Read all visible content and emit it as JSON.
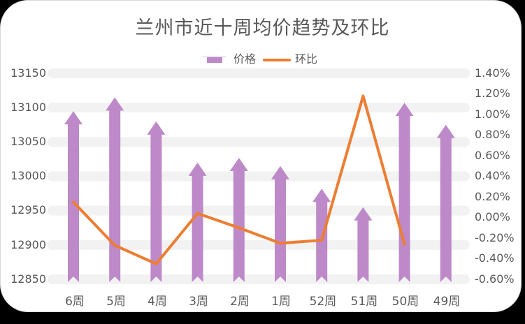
{
  "title": "兰州市近十周均价趋势及环比",
  "legend": [
    {
      "label": "价格",
      "type": "bar-arrow",
      "color": "#bd89c9"
    },
    {
      "label": "环比",
      "type": "line",
      "color": "#ed7d31"
    }
  ],
  "axes": {
    "left_ticks": [
      "13150",
      "13100",
      "13050",
      "13000",
      "12950",
      "12900",
      "12850"
    ],
    "right_ticks": [
      "1.40%",
      "1.20%",
      "1.00%",
      "0.80%",
      "0.60%",
      "0.40%",
      "0.20%",
      "0.00%",
      "-0.20%",
      "-0.40%",
      "-0.60%"
    ],
    "x_ticks": [
      "6周",
      "5周",
      "4周",
      "3周",
      "2周",
      "1周",
      "52周",
      "51周",
      "50周",
      "49周"
    ]
  },
  "colors": {
    "bar": "#bd89c9",
    "line": "#ed7d31",
    "grid_band": "#f2f2f2",
    "text": "#595959"
  },
  "chart_data": {
    "type": "bar",
    "title": "兰州市近十周均价趋势及环比",
    "categories": [
      "6周",
      "5周",
      "4周",
      "3周",
      "2周",
      "1周",
      "52周",
      "51周",
      "50周",
      "49周"
    ],
    "series": [
      {
        "name": "价格",
        "type": "bar",
        "axis": "left",
        "values": [
          13095,
          13115,
          13080,
          13020,
          13027,
          13015,
          12982,
          12955,
          13107,
          13075
        ]
      },
      {
        "name": "环比",
        "type": "line",
        "axis": "right",
        "unit": "%",
        "values": [
          0.15,
          -0.27,
          -0.45,
          0.04,
          -0.1,
          -0.25,
          -0.22,
          1.18,
          -0.26,
          null
        ]
      }
    ],
    "xlabel": "",
    "ylabel": "",
    "ylim": [
      12850,
      13150
    ],
    "y2lim": [
      -0.6,
      1.4
    ],
    "grid": true,
    "legend_position": "top"
  }
}
